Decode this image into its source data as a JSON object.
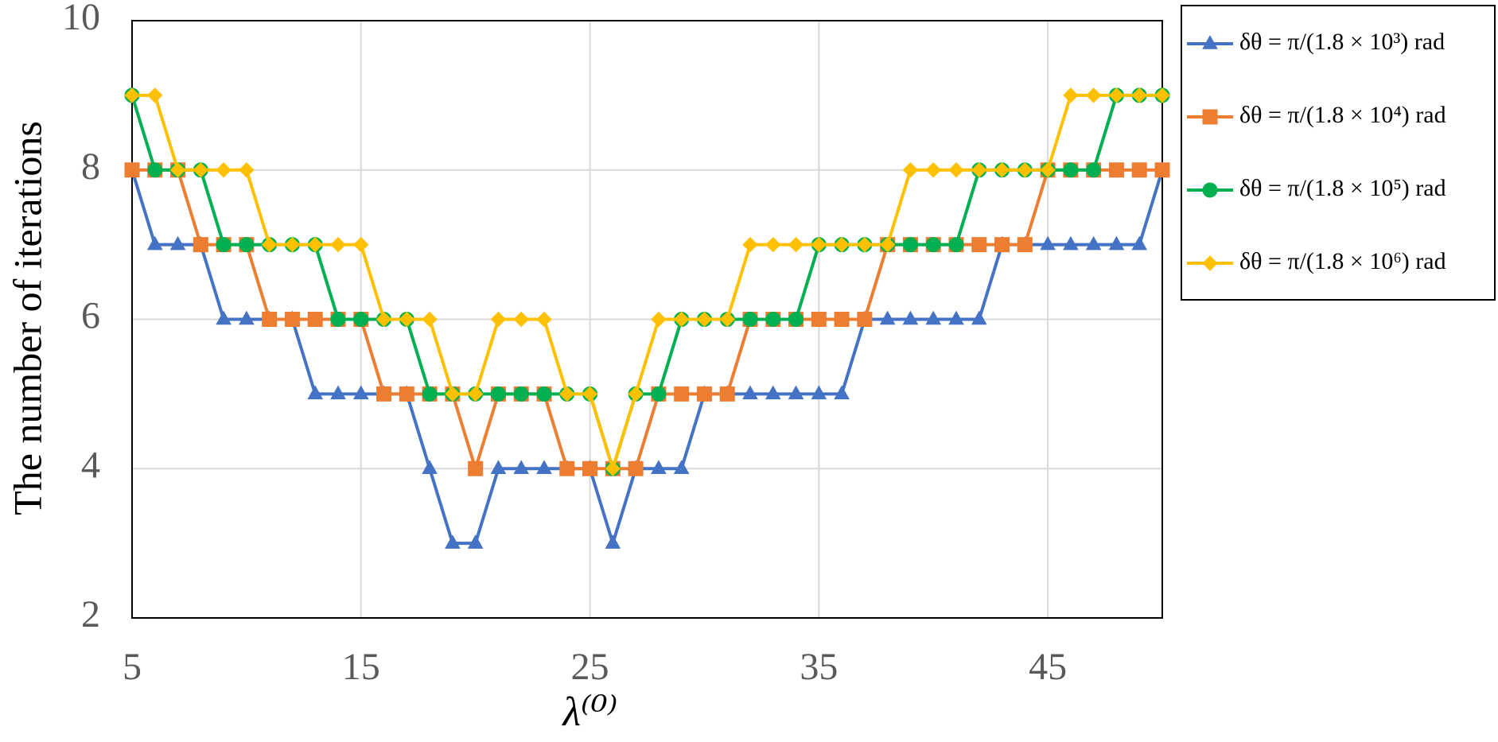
{
  "chart_data": {
    "type": "line",
    "x_label": "λ⁽⁰⁾",
    "y_label": "The number of iterations",
    "x": [
      5,
      6,
      7,
      8,
      9,
      10,
      11,
      12,
      13,
      14,
      15,
      16,
      17,
      18,
      19,
      20,
      21,
      22,
      23,
      24,
      25,
      26,
      27,
      28,
      29,
      30,
      31,
      32,
      33,
      34,
      35,
      36,
      37,
      38,
      39,
      40,
      41,
      42,
      43,
      44,
      45,
      46,
      47,
      48,
      49,
      50
    ],
    "xlim": [
      5,
      50
    ],
    "xticks": [
      5,
      15,
      25,
      35,
      45
    ],
    "ylim": [
      2,
      10
    ],
    "yticks": [
      2,
      4,
      6,
      8,
      10
    ],
    "grid": true,
    "legend": "outside-right",
    "series": [
      {
        "name": "δθ = π/(1.8 × 10³) rad",
        "color": "#4472c4",
        "marker": "triangle",
        "values": [
          8,
          7,
          7,
          7,
          6,
          6,
          6,
          6,
          5,
          5,
          5,
          5,
          5,
          4,
          3,
          3,
          4,
          4,
          4,
          4,
          4,
          3,
          4,
          4,
          4,
          5,
          5,
          5,
          5,
          5,
          5,
          5,
          6,
          6,
          6,
          6,
          6,
          6,
          7,
          7,
          7,
          7,
          7,
          7,
          7,
          8
        ]
      },
      {
        "name": "δθ = π/(1.8 × 10⁴) rad",
        "color": "#ed7d31",
        "marker": "square",
        "values": [
          8,
          8,
          8,
          7,
          7,
          7,
          6,
          6,
          6,
          6,
          6,
          5,
          5,
          5,
          5,
          4,
          5,
          5,
          5,
          4,
          4,
          4,
          4,
          5,
          5,
          5,
          5,
          6,
          6,
          6,
          6,
          6,
          6,
          7,
          7,
          7,
          7,
          7,
          7,
          7,
          8,
          8,
          8,
          8,
          8,
          8
        ]
      },
      {
        "name": "δθ = π/(1.8 × 10⁵) rad",
        "color": "#00b050",
        "marker": "circle",
        "values": [
          9,
          8,
          8,
          8,
          7,
          7,
          7,
          7,
          7,
          6,
          6,
          6,
          6,
          5,
          5,
          5,
          5,
          5,
          5,
          5,
          5,
          4,
          5,
          5,
          6,
          6,
          6,
          6,
          6,
          6,
          7,
          7,
          7,
          7,
          7,
          7,
          7,
          8,
          8,
          8,
          8,
          8,
          8,
          9,
          9,
          9
        ]
      },
      {
        "name": "δθ = π/(1.8 × 10⁶) rad",
        "color": "#ffc000",
        "marker": "diamond",
        "values": [
          9,
          9,
          8,
          8,
          8,
          8,
          7,
          7,
          7,
          7,
          7,
          6,
          6,
          6,
          5,
          5,
          6,
          6,
          6,
          5,
          5,
          4,
          5,
          6,
          6,
          6,
          6,
          7,
          7,
          7,
          7,
          7,
          7,
          7,
          8,
          8,
          8,
          8,
          8,
          8,
          8,
          9,
          9,
          9,
          9,
          9
        ]
      }
    ]
  }
}
